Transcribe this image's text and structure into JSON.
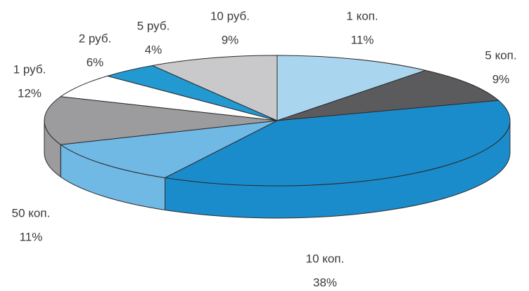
{
  "chart_data": {
    "type": "pie",
    "categories": [
      "1 коп.",
      "5 коп.",
      "10 коп.",
      "50 коп.",
      "1 руб.",
      "2 руб.",
      "5 руб.",
      "10 руб."
    ],
    "values": [
      11,
      9,
      38,
      11,
      12,
      6,
      4,
      9
    ],
    "value_labels": [
      "11%",
      "9%",
      "38%",
      "11%",
      "12%",
      "6%",
      "4%",
      "9%"
    ],
    "colors": [
      "#a9d5ef",
      "#5b5b5d",
      "#1b8ccb",
      "#70b9e5",
      "#9c9c9e",
      "#ffffff",
      "#2399d1",
      "#c9c9cb"
    ]
  }
}
